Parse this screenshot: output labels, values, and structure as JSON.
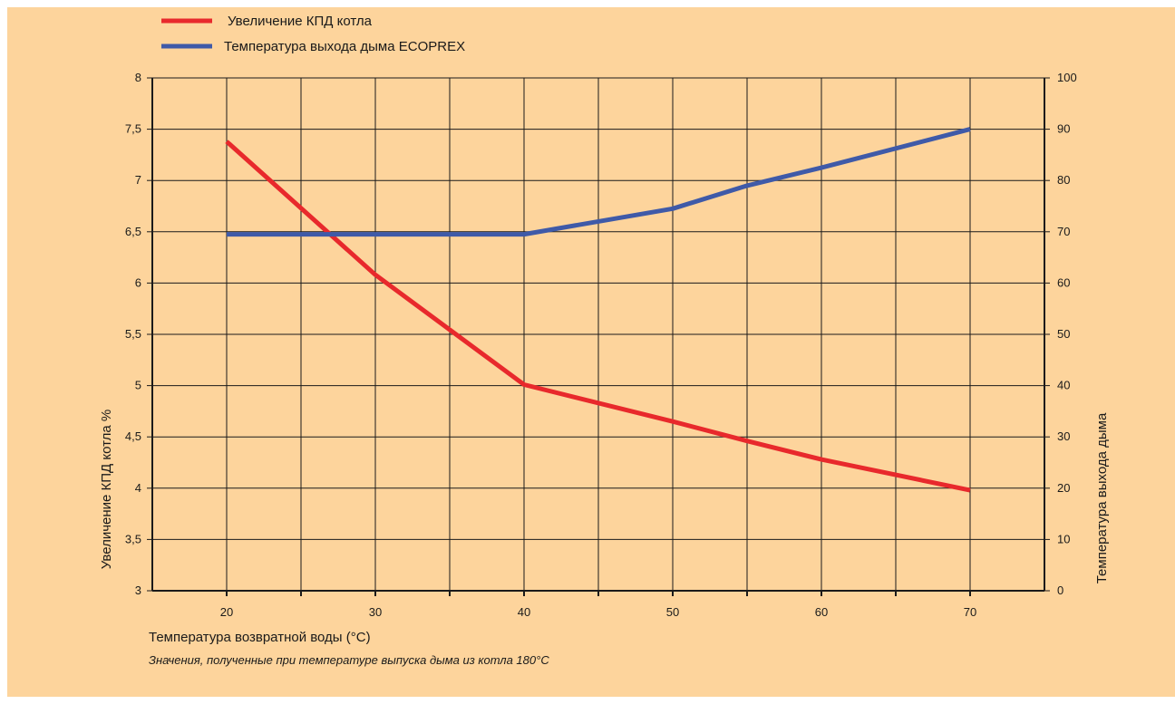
{
  "chart_data": {
    "type": "line",
    "background": "#fdd49c",
    "legend": {
      "placement": "top-left",
      "entries": [
        {
          "label": "Увеличение КПД котла",
          "color": "#e8292c"
        },
        {
          "label": "Температура выхода дыма ECOPREX",
          "color": "#3f5aa8"
        }
      ]
    },
    "x_axis": {
      "label": "Температура возвратной воды (°C)",
      "range": [
        15,
        75
      ],
      "tick_labels": [
        "20",
        "30",
        "40",
        "50",
        "60",
        "70"
      ],
      "ticks": [
        20,
        30,
        40,
        50,
        60,
        70
      ]
    },
    "y_left": {
      "label": "Увеличение КПД котла %",
      "range": [
        3,
        8
      ],
      "tick_labels": [
        "3",
        "3,5",
        "4",
        "4,5",
        "5",
        "5,5",
        "6",
        "6,5",
        "7",
        "7,5",
        "8"
      ],
      "ticks": [
        3,
        3.5,
        4,
        4.5,
        5,
        5.5,
        6,
        6.5,
        7,
        7.5,
        8
      ]
    },
    "y_right": {
      "label": "Температура выхода дыма",
      "range": [
        0,
        100
      ],
      "tick_labels": [
        "0",
        "10",
        "20",
        "30",
        "40",
        "50",
        "60",
        "70",
        "80",
        "90",
        "100"
      ],
      "ticks": [
        0,
        10,
        20,
        30,
        40,
        50,
        60,
        70,
        80,
        90,
        100
      ]
    },
    "grid": true,
    "series": [
      {
        "name": "Увеличение КПД котла",
        "axis": "left",
        "color": "#e8292c",
        "x": [
          20,
          30,
          40,
          50,
          55,
          60,
          70
        ],
        "y": [
          7.38,
          6.08,
          5.01,
          4.65,
          4.46,
          4.28,
          3.98
        ]
      },
      {
        "name": "Температура выхода дыма ECOPREX",
        "axis": "right",
        "color": "#3f5aa8",
        "x": [
          20,
          30,
          40,
          50,
          55,
          60,
          70
        ],
        "y": [
          69.5,
          69.5,
          69.5,
          74.5,
          79,
          82.5,
          90
        ]
      }
    ],
    "note": "Значения, полученные при температуре выпуска дыма из котла 180°C"
  }
}
